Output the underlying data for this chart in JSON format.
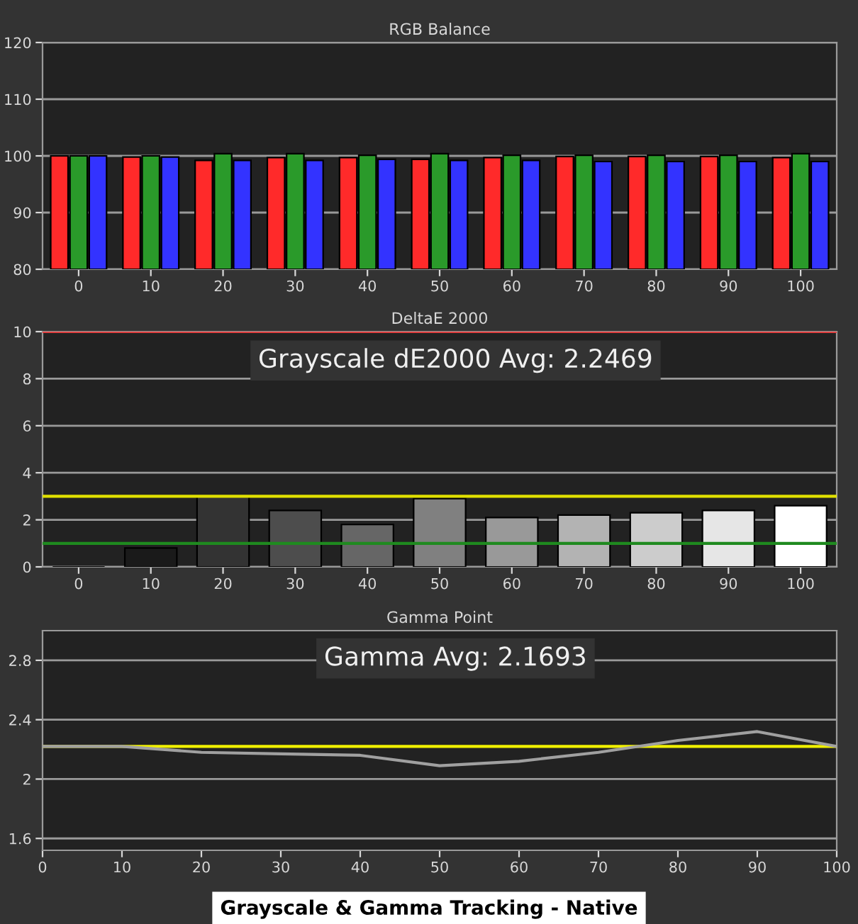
{
  "chart_data": [
    {
      "type": "bar",
      "title": "RGB Balance",
      "categories": [
        "0",
        "10",
        "20",
        "30",
        "40",
        "50",
        "60",
        "70",
        "80",
        "90",
        "100"
      ],
      "series": [
        {
          "color": "#ff2a2a",
          "values": [
            100,
            99.8,
            99.2,
            99.7,
            99.7,
            99.4,
            99.7,
            99.9,
            99.9,
            99.9,
            99.7
          ]
        },
        {
          "color": "#2a9a2a",
          "values": [
            100,
            100,
            100.4,
            100.4,
            100.1,
            100.4,
            100.1,
            100.1,
            100.1,
            100.1,
            100.4
          ]
        },
        {
          "color": "#3333ff",
          "values": [
            100,
            99.8,
            99.2,
            99.2,
            99.4,
            99.2,
            99.2,
            99.0,
            99.0,
            99.0,
            99.0
          ]
        }
      ],
      "ylim": [
        80,
        120
      ],
      "yticks": [
        80,
        90,
        100,
        110,
        120
      ],
      "grid": "y",
      "legend": false
    },
    {
      "type": "bar",
      "title": "DeltaE 2000",
      "categories": [
        "0",
        "10",
        "20",
        "30",
        "40",
        "50",
        "60",
        "70",
        "80",
        "90",
        "100"
      ],
      "values": [
        0,
        0.8,
        3.0,
        2.4,
        1.8,
        2.9,
        2.1,
        2.2,
        2.3,
        2.4,
        2.6
      ],
      "colors": [
        "#000000",
        "#1a1a1a",
        "#333333",
        "#4d4d4d",
        "#666666",
        "#808080",
        "#999999",
        "#b3b3b3",
        "#cccccc",
        "#e6e6e6",
        "#ffffff"
      ],
      "ylim": [
        0,
        10
      ],
      "yticks": [
        0,
        2,
        4,
        6,
        8,
        10
      ],
      "grid": "y",
      "ref_lines": [
        {
          "axis": "y",
          "value": 10,
          "color": "#e04040"
        },
        {
          "axis": "y",
          "value": 3,
          "color": "#e0e000"
        },
        {
          "axis": "y",
          "value": 1,
          "color": "#1f8a1f"
        }
      ],
      "annotations": [
        "Grayscale dE2000 Avg: 2.2469"
      ],
      "legend": false
    },
    {
      "type": "line",
      "title": "Gamma Point",
      "x": [
        0,
        10,
        20,
        30,
        40,
        50,
        60,
        70,
        80,
        90,
        100
      ],
      "series": [
        {
          "color": "#a0a0a0",
          "values": [
            2.22,
            2.22,
            2.18,
            2.17,
            2.16,
            2.09,
            2.12,
            2.18,
            2.26,
            2.32,
            2.22
          ]
        }
      ],
      "xlim": [
        0,
        100
      ],
      "xticks": [
        0,
        10,
        20,
        30,
        40,
        50,
        60,
        70,
        80,
        90,
        100
      ],
      "ylim": [
        1.52,
        3.0
      ],
      "yticks": [
        1.6,
        2,
        2.4,
        2.8
      ],
      "grid": "y",
      "ref_lines": [
        {
          "axis": "y",
          "value": 2.22,
          "color": "#f0f000"
        }
      ],
      "annotations": [
        "Gamma Avg: 2.1693",
        "Grayscale & Gamma Tracking - Native"
      ],
      "legend": false
    }
  ]
}
